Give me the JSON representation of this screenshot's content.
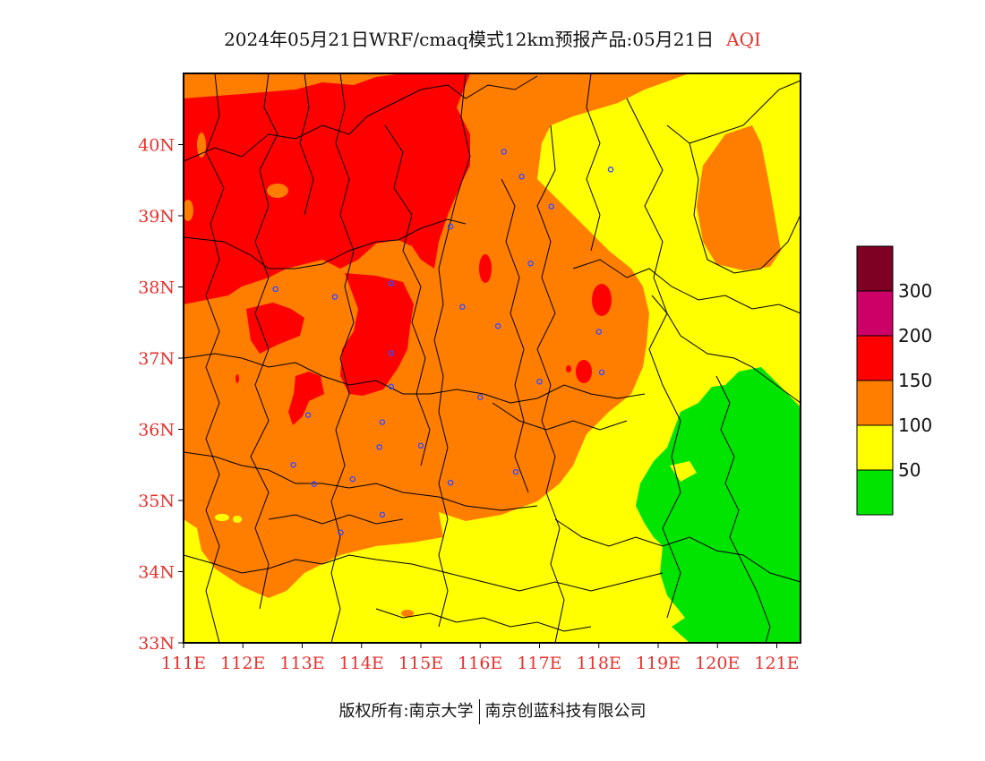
{
  "title": {
    "text": "2024年05月21日WRF/cmaq模式12km预报产品:05月21日",
    "product": "AQI"
  },
  "colors": {
    "green": "#00e400",
    "yellow": "#ffff00",
    "orange": "#ff7e00",
    "red": "#ff0000",
    "purple": "#cc0066",
    "maroon": "#7e0023",
    "axis_label": "#e8302c",
    "city_marker": "#3a4bff"
  },
  "map": {
    "lon_range": [
      111,
      121.4
    ],
    "lat_range": [
      33,
      41
    ],
    "lat_labels": [
      "33N",
      "34N",
      "35N",
      "36N",
      "37N",
      "38N",
      "39N",
      "40N"
    ],
    "lon_labels": [
      "111E",
      "112E",
      "113E",
      "114E",
      "115E",
      "116E",
      "117E",
      "118E",
      "119E",
      "120E",
      "121E"
    ],
    "cities": [
      {
        "lon": 116.4,
        "lat": 39.9
      },
      {
        "lon": 116.7,
        "lat": 39.55
      },
      {
        "lon": 117.2,
        "lat": 39.13
      },
      {
        "lon": 118.2,
        "lat": 39.65
      },
      {
        "lon": 115.5,
        "lat": 38.85
      },
      {
        "lon": 116.85,
        "lat": 38.33
      },
      {
        "lon": 114.5,
        "lat": 38.05
      },
      {
        "lon": 113.55,
        "lat": 37.86
      },
      {
        "lon": 112.55,
        "lat": 37.97
      },
      {
        "lon": 115.7,
        "lat": 37.72
      },
      {
        "lon": 116.3,
        "lat": 37.45
      },
      {
        "lon": 118.0,
        "lat": 37.37
      },
      {
        "lon": 114.5,
        "lat": 37.07
      },
      {
        "lon": 117.0,
        "lat": 36.67
      },
      {
        "lon": 118.05,
        "lat": 36.8
      },
      {
        "lon": 114.5,
        "lat": 36.6
      },
      {
        "lon": 116.0,
        "lat": 36.45
      },
      {
        "lon": 113.1,
        "lat": 36.2
      },
      {
        "lon": 114.35,
        "lat": 36.1
      },
      {
        "lon": 114.3,
        "lat": 35.75
      },
      {
        "lon": 115.0,
        "lat": 35.77
      },
      {
        "lon": 112.85,
        "lat": 35.5
      },
      {
        "lon": 113.2,
        "lat": 35.23
      },
      {
        "lon": 113.85,
        "lat": 35.3
      },
      {
        "lon": 115.5,
        "lat": 35.25
      },
      {
        "lon": 116.6,
        "lat": 35.4
      },
      {
        "lon": 114.35,
        "lat": 34.8
      },
      {
        "lon": 113.65,
        "lat": 34.55
      }
    ]
  },
  "legend": {
    "levels": [
      {
        "color": "#00e400"
      },
      {
        "color": "#ffff00"
      },
      {
        "color": "#ff7e00"
      },
      {
        "color": "#ff0000"
      },
      {
        "color": "#cc0066"
      },
      {
        "color": "#7e0023"
      }
    ],
    "tick_labels": [
      "50",
      "100",
      "150",
      "200",
      "300"
    ]
  },
  "footer": {
    "left": "版权所有:南京大学",
    "right": "南京创蓝科技有限公司"
  }
}
